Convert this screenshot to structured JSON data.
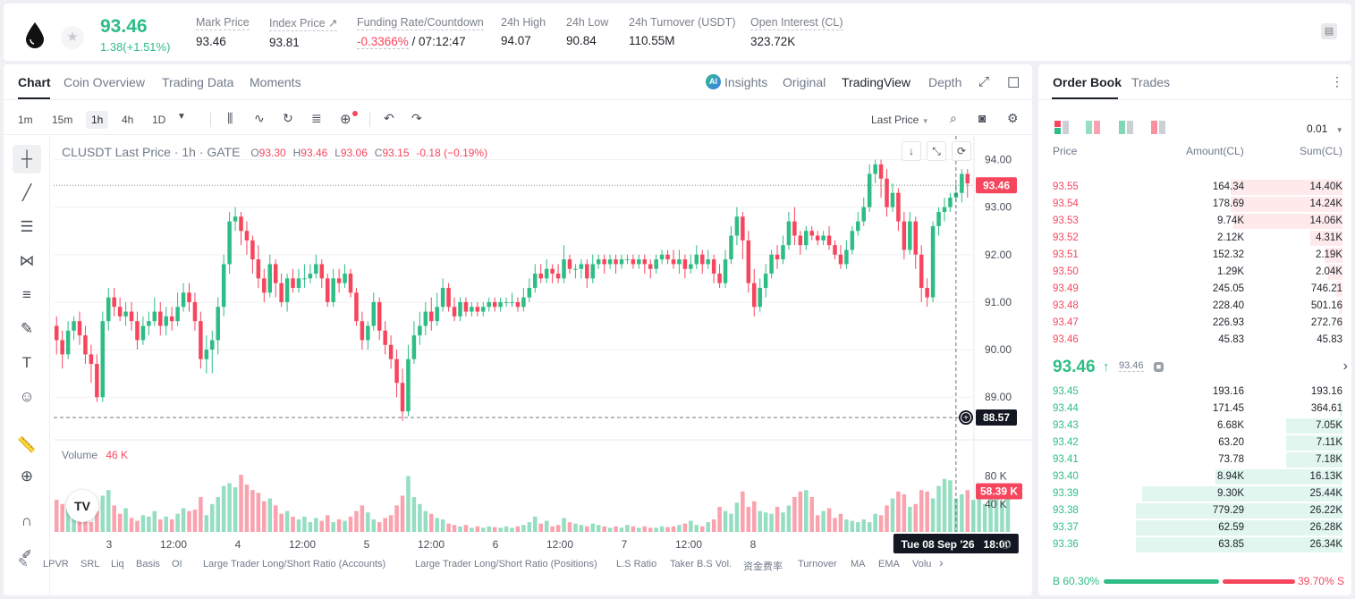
{
  "header": {
    "last_price": "93.46",
    "change": "1.38(+1.51%)",
    "stats": [
      {
        "label": "Mark Price",
        "value": "93.46"
      },
      {
        "label": "Index Price ↗",
        "value": "93.81"
      },
      {
        "label": "Funding Rate/Countdown",
        "value_rate": "-0.3366%",
        "value_countdown": " / 07:12:47"
      },
      {
        "label": "24h High",
        "value": "94.07"
      },
      {
        "label": "24h Low",
        "value": "90.84"
      },
      {
        "label": "24h Turnover (USDT)",
        "value": "110.55M"
      },
      {
        "label": "Open Interest (CL)",
        "value": "323.72K"
      }
    ]
  },
  "chart_tabs": [
    "Chart",
    "Coin Overview",
    "Trading Data",
    "Moments"
  ],
  "view_tabs": {
    "insights": "Insights",
    "original": "Original",
    "tradingview": "TradingView",
    "depth": "Depth",
    "ai_badge": "AI"
  },
  "intervals": [
    "1m",
    "15m",
    "1h",
    "4h",
    "1D"
  ],
  "last_price_selector": "Last Price",
  "legend": {
    "title": "CLUSDT Last Price · 1h · GATE",
    "open_label": "O",
    "open": "93.30",
    "high_label": "H",
    "high": "93.46",
    "low_label": "L",
    "low": "93.06",
    "close_label": "C",
    "close": "93.15",
    "change": "-0.18 (−0.19%)"
  },
  "volume_legend": {
    "label": "Volume",
    "value": "46 K"
  },
  "tv_logo": "TV",
  "indicators": [
    "LPVR",
    "SRL",
    "Liq",
    "Basis",
    "OI",
    "Large Trader Long/Short Ratio (Accounts)",
    "Large Trader Long/Short Ratio (Positions)",
    "L.S Ratio",
    "Taker B.S Vol.",
    "资金费率",
    "Turnover",
    "MA",
    "EMA",
    "Volu"
  ],
  "chart_data": {
    "type": "candlestick",
    "title": "CLUSDT Last Price · 1h · GATE",
    "y_ticks": [
      "94.00",
      "93.00",
      "92.00",
      "91.00",
      "90.00",
      "89.00"
    ],
    "ylim": [
      88.1,
      94.5
    ],
    "volume_ticks": [
      "80 K",
      "40 K"
    ],
    "volume_ylim": [
      0,
      100
    ],
    "x_ticks": [
      "3",
      "12:00",
      "4",
      "12:00",
      "5",
      "12:00",
      "6",
      "12:00",
      "7",
      "12:00",
      "8",
      "12:00"
    ],
    "last_price_label": "93.46",
    "last_price_value": 93.46,
    "crosshair_price_label": "88.57",
    "crosshair_price_value": 88.57,
    "crosshair_time_label": "Tue 08 Sep '26   18:00",
    "volume_current_label": "58.39 K",
    "volume_current_value": 58.39,
    "up_color": "#2ebd85",
    "down_color": "#f6465d",
    "candles": [
      [
        90.5,
        90.2,
        90.7,
        89.9
      ],
      [
        90.2,
        89.9,
        90.4,
        89.6
      ],
      [
        89.9,
        90.4,
        90.6,
        89.8
      ],
      [
        90.4,
        90.6,
        90.7,
        90.2
      ],
      [
        90.6,
        90.3,
        90.8,
        90.1
      ],
      [
        90.3,
        89.9,
        90.5,
        89.7
      ],
      [
        89.9,
        89.7,
        90.1,
        89.3
      ],
      [
        89.7,
        89.0,
        89.9,
        88.9
      ],
      [
        89.0,
        90.6,
        90.8,
        88.9
      ],
      [
        90.6,
        91.1,
        91.3,
        90.4
      ],
      [
        91.1,
        90.9,
        91.3,
        90.7
      ],
      [
        90.9,
        90.7,
        91.1,
        90.6
      ],
      [
        90.7,
        90.8,
        91.0,
        90.5
      ],
      [
        90.8,
        90.6,
        91.0,
        90.4
      ],
      [
        90.6,
        90.2,
        90.8,
        90.0
      ],
      [
        90.2,
        90.5,
        90.7,
        90.1
      ],
      [
        90.5,
        90.6,
        90.8,
        90.3
      ],
      [
        90.6,
        90.8,
        91.1,
        90.5
      ],
      [
        90.8,
        90.5,
        91.0,
        90.3
      ],
      [
        90.5,
        90.7,
        90.9,
        90.3
      ],
      [
        90.7,
        90.6,
        90.9,
        90.4
      ],
      [
        90.6,
        90.9,
        91.2,
        90.5
      ],
      [
        90.9,
        91.2,
        91.4,
        90.8
      ],
      [
        91.2,
        91.0,
        91.4,
        90.8
      ],
      [
        91.0,
        90.6,
        91.2,
        90.4
      ],
      [
        90.6,
        89.8,
        90.8,
        89.6
      ],
      [
        89.8,
        90.0,
        90.3,
        89.5
      ],
      [
        90.0,
        90.2,
        90.4,
        89.5
      ],
      [
        90.2,
        90.9,
        91.1,
        89.9
      ],
      [
        90.9,
        91.8,
        92.0,
        90.7
      ],
      [
        91.8,
        92.7,
        92.9,
        91.6
      ],
      [
        92.7,
        92.8,
        93.0,
        92.5
      ],
      [
        92.8,
        92.5,
        92.9,
        92.2
      ],
      [
        92.5,
        92.3,
        92.7,
        92.0
      ],
      [
        92.3,
        91.9,
        92.4,
        91.6
      ],
      [
        91.9,
        91.5,
        92.2,
        91.3
      ],
      [
        91.5,
        91.2,
        91.7,
        91.0
      ],
      [
        91.2,
        91.8,
        92.0,
        91.1
      ],
      [
        91.8,
        91.4,
        91.9,
        91.1
      ],
      [
        91.4,
        91.0,
        91.6,
        90.9
      ],
      [
        91.0,
        91.5,
        91.6,
        90.8
      ],
      [
        91.5,
        91.3,
        91.7,
        91.2
      ],
      [
        91.3,
        91.5,
        91.7,
        91.2
      ],
      [
        91.5,
        91.5,
        91.8,
        91.3
      ],
      [
        91.5,
        91.6,
        91.8,
        91.4
      ],
      [
        91.6,
        91.8,
        92.0,
        91.5
      ],
      [
        91.8,
        91.5,
        91.9,
        91.3
      ],
      [
        91.5,
        91.0,
        91.6,
        90.9
      ],
      [
        91.0,
        91.5,
        91.7,
        90.9
      ],
      [
        91.5,
        91.4,
        91.7,
        91.2
      ],
      [
        91.4,
        91.6,
        91.8,
        91.3
      ],
      [
        91.6,
        91.2,
        91.7,
        91.1
      ],
      [
        91.2,
        90.6,
        91.3,
        90.5
      ],
      [
        90.6,
        90.2,
        90.8,
        90.0
      ],
      [
        90.2,
        90.5,
        90.6,
        90.0
      ],
      [
        90.5,
        91.0,
        91.2,
        90.4
      ],
      [
        91.0,
        90.4,
        91.1,
        90.2
      ],
      [
        90.4,
        90.1,
        90.6,
        89.9
      ],
      [
        90.1,
        89.8,
        90.3,
        89.6
      ],
      [
        89.8,
        89.3,
        90.0,
        89.0
      ],
      [
        89.3,
        88.7,
        89.6,
        88.5
      ],
      [
        88.7,
        89.8,
        90.1,
        88.6
      ],
      [
        89.8,
        90.3,
        90.6,
        89.7
      ],
      [
        90.3,
        90.5,
        90.8,
        90.1
      ],
      [
        90.5,
        90.8,
        91.0,
        90.3
      ],
      [
        90.8,
        90.6,
        91.1,
        90.4
      ],
      [
        90.6,
        90.9,
        91.2,
        90.5
      ],
      [
        90.9,
        91.3,
        91.5,
        90.8
      ],
      [
        91.3,
        90.9,
        91.4,
        90.8
      ],
      [
        90.9,
        90.7,
        91.1,
        90.6
      ],
      [
        90.7,
        91.0,
        91.1,
        90.6
      ],
      [
        91.0,
        90.8,
        91.1,
        90.7
      ],
      [
        90.8,
        90.9,
        91.0,
        90.7
      ],
      [
        90.9,
        90.8,
        91.0,
        90.7
      ],
      [
        90.8,
        90.9,
        91.0,
        90.7
      ],
      [
        90.9,
        91.0,
        91.1,
        90.8
      ],
      [
        91.0,
        90.9,
        91.1,
        90.8
      ],
      [
        90.9,
        91.0,
        91.1,
        90.8
      ],
      [
        91.0,
        91.0,
        91.1,
        90.9
      ],
      [
        91.0,
        91.0,
        91.2,
        90.9
      ],
      [
        91.0,
        90.9,
        91.1,
        90.8
      ],
      [
        90.9,
        91.1,
        91.3,
        90.8
      ],
      [
        91.1,
        91.3,
        91.5,
        91.0
      ],
      [
        91.3,
        91.6,
        91.8,
        91.2
      ],
      [
        91.6,
        91.5,
        91.8,
        91.4
      ],
      [
        91.5,
        91.7,
        91.9,
        91.4
      ],
      [
        91.7,
        91.6,
        91.8,
        91.4
      ],
      [
        91.6,
        91.5,
        91.8,
        91.4
      ],
      [
        91.5,
        91.9,
        92.2,
        91.4
      ],
      [
        91.9,
        91.7,
        92.0,
        91.6
      ],
      [
        91.7,
        91.7,
        91.8,
        91.5
      ],
      [
        91.7,
        91.8,
        91.9,
        91.5
      ],
      [
        91.8,
        91.5,
        91.9,
        91.3
      ],
      [
        91.5,
        91.8,
        92.0,
        91.4
      ],
      [
        91.8,
        91.9,
        92.0,
        91.7
      ],
      [
        91.9,
        91.8,
        92.0,
        91.6
      ],
      [
        91.8,
        91.9,
        92.0,
        91.7
      ],
      [
        91.9,
        91.8,
        92.0,
        91.6
      ],
      [
        91.8,
        91.9,
        92.0,
        91.7
      ],
      [
        91.9,
        91.9,
        92.0,
        91.8
      ],
      [
        91.9,
        91.8,
        92.0,
        91.7
      ],
      [
        91.8,
        91.9,
        92.0,
        91.7
      ],
      [
        91.9,
        91.8,
        92.0,
        91.6
      ],
      [
        91.8,
        91.7,
        91.9,
        91.5
      ],
      [
        91.7,
        91.9,
        92.0,
        91.6
      ],
      [
        91.9,
        92.0,
        92.1,
        91.8
      ],
      [
        92.0,
        91.9,
        92.1,
        91.8
      ],
      [
        91.9,
        91.8,
        92.1,
        91.7
      ],
      [
        91.8,
        91.9,
        92.1,
        91.6
      ],
      [
        91.9,
        91.7,
        92.0,
        91.5
      ],
      [
        91.7,
        91.8,
        92.0,
        91.6
      ],
      [
        91.8,
        92.0,
        92.2,
        91.7
      ],
      [
        92.0,
        91.8,
        92.1,
        91.6
      ],
      [
        91.8,
        91.9,
        92.1,
        91.7
      ],
      [
        91.9,
        91.6,
        92.0,
        91.4
      ],
      [
        91.6,
        91.4,
        91.8,
        91.3
      ],
      [
        91.4,
        91.9,
        92.1,
        91.3
      ],
      [
        91.9,
        92.4,
        92.6,
        91.8
      ],
      [
        92.4,
        92.8,
        93.0,
        92.2
      ],
      [
        92.8,
        92.3,
        92.9,
        91.9
      ],
      [
        92.3,
        91.4,
        92.5,
        91.2
      ],
      [
        91.4,
        90.9,
        91.7,
        90.7
      ],
      [
        90.9,
        91.3,
        91.5,
        90.8
      ],
      [
        91.3,
        91.6,
        91.8,
        91.1
      ],
      [
        91.6,
        92.0,
        92.1,
        91.5
      ],
      [
        92.0,
        91.9,
        92.2,
        91.7
      ],
      [
        91.9,
        92.2,
        92.4,
        91.8
      ],
      [
        92.2,
        92.7,
        92.9,
        92.1
      ],
      [
        92.7,
        92.4,
        93.0,
        92.2
      ],
      [
        92.4,
        92.2,
        92.5,
        92.0
      ],
      [
        92.2,
        92.5,
        92.6,
        92.1
      ],
      [
        92.5,
        92.4,
        92.6,
        92.3
      ],
      [
        92.4,
        92.3,
        92.5,
        92.2
      ],
      [
        92.3,
        92.4,
        92.5,
        92.2
      ],
      [
        92.4,
        92.2,
        92.6,
        92.1
      ],
      [
        92.2,
        92.0,
        92.3,
        91.9
      ],
      [
        92.0,
        91.8,
        92.2,
        91.7
      ],
      [
        91.8,
        92.1,
        92.3,
        91.7
      ],
      [
        92.1,
        92.5,
        92.6,
        92.0
      ],
      [
        92.5,
        92.7,
        92.9,
        92.4
      ],
      [
        92.7,
        93.0,
        93.2,
        92.6
      ],
      [
        93.0,
        93.7,
        93.9,
        92.9
      ],
      [
        93.7,
        93.9,
        94.0,
        93.5
      ],
      [
        93.9,
        93.6,
        94.0,
        93.2
      ],
      [
        93.6,
        93.0,
        93.8,
        92.8
      ],
      [
        93.0,
        93.3,
        93.5,
        92.9
      ],
      [
        93.3,
        92.7,
        93.4,
        92.5
      ],
      [
        92.7,
        92.1,
        92.9,
        91.9
      ],
      [
        92.1,
        92.7,
        92.9,
        92.0
      ],
      [
        92.7,
        92.0,
        92.8,
        91.7
      ],
      [
        92.0,
        91.3,
        92.2,
        91.0
      ],
      [
        91.3,
        91.1,
        91.5,
        90.9
      ],
      [
        91.1,
        92.6,
        92.7,
        91.0
      ],
      [
        92.6,
        92.9,
        93.0,
        92.4
      ],
      [
        92.9,
        93.0,
        93.2,
        92.7
      ],
      [
        93.0,
        93.2,
        93.3,
        92.9
      ],
      [
        93.2,
        93.3,
        93.5,
        93.1
      ],
      [
        93.3,
        93.7,
        93.8,
        93.1
      ],
      [
        93.7,
        93.5,
        93.8,
        93.2
      ]
    ],
    "volumes": [
      46,
      40,
      34,
      20,
      28,
      22,
      14,
      30,
      52,
      60,
      38,
      26,
      34,
      20,
      16,
      24,
      22,
      30,
      18,
      22,
      18,
      26,
      34,
      30,
      32,
      50,
      24,
      40,
      50,
      66,
      70,
      64,
      82,
      68,
      60,
      56,
      44,
      48,
      38,
      26,
      30,
      22,
      18,
      22,
      14,
      20,
      16,
      24,
      14,
      18,
      16,
      22,
      30,
      38,
      28,
      18,
      14,
      20,
      24,
      38,
      52,
      80,
      50,
      40,
      30,
      26,
      20,
      18,
      12,
      10,
      8,
      10,
      6,
      8,
      6,
      8,
      7,
      6,
      8,
      6,
      8,
      10,
      14,
      22,
      12,
      16,
      8,
      10,
      20,
      14,
      12,
      10,
      8,
      12,
      10,
      8,
      6,
      8,
      6,
      10,
      8,
      6,
      8,
      6,
      6,
      8,
      7,
      8,
      10,
      12,
      16,
      10,
      8,
      14,
      18,
      36,
      30,
      26,
      42,
      58,
      36,
      44,
      30,
      28,
      26,
      36,
      28,
      38,
      50,
      58,
      60,
      50,
      24,
      30,
      34,
      20,
      26,
      18,
      16,
      14,
      18,
      14,
      26,
      24,
      38,
      48,
      58,
      54,
      36,
      40,
      60,
      58,
      48,
      66,
      76,
      74,
      48,
      54,
      60,
      46,
      50,
      40,
      48,
      52,
      44,
      56
    ]
  },
  "orderbook": {
    "tabs": [
      "Order Book",
      "Trades"
    ],
    "precision": "0.01",
    "columns": {
      "price": "Price",
      "amount": "Amount(CL)",
      "sum": "Sum(CL)"
    },
    "asks": [
      {
        "price": "93.55",
        "amount": "164.34",
        "sum": "14.40K",
        "depth": 0.38
      },
      {
        "price": "93.54",
        "amount": "178.69",
        "sum": "14.24K",
        "depth": 0.38
      },
      {
        "price": "93.53",
        "amount": "9.74K",
        "sum": "14.06K",
        "depth": 0.37
      },
      {
        "price": "93.52",
        "amount": "2.12K",
        "sum": "4.31K",
        "depth": 0.11
      },
      {
        "price": "93.51",
        "amount": "152.32",
        "sum": "2.19K",
        "depth": 0.06
      },
      {
        "price": "93.50",
        "amount": "1.29K",
        "sum": "2.04K",
        "depth": 0.05
      },
      {
        "price": "93.49",
        "amount": "245.05",
        "sum": "746.21",
        "depth": 0.02
      },
      {
        "price": "93.48",
        "amount": "228.40",
        "sum": "501.16",
        "depth": 0.013
      },
      {
        "price": "93.47",
        "amount": "226.93",
        "sum": "272.76",
        "depth": 0.007
      },
      {
        "price": "93.46",
        "amount": "45.83",
        "sum": "45.83",
        "depth": 0.0
      }
    ],
    "mid": {
      "price": "93.46",
      "arrow": "↑",
      "mark": "93.46",
      "chevron": "›"
    },
    "bids": [
      {
        "price": "93.45",
        "amount": "193.16",
        "sum": "193.16",
        "depth": 0.0
      },
      {
        "price": "93.44",
        "amount": "171.45",
        "sum": "364.61",
        "depth": 0.01
      },
      {
        "price": "93.43",
        "amount": "6.68K",
        "sum": "7.05K",
        "depth": 0.19
      },
      {
        "price": "93.42",
        "amount": "63.20",
        "sum": "7.11K",
        "depth": 0.19
      },
      {
        "price": "93.41",
        "amount": "73.78",
        "sum": "7.18K",
        "depth": 0.19
      },
      {
        "price": "93.40",
        "amount": "8.94K",
        "sum": "16.13K",
        "depth": 0.43
      },
      {
        "price": "93.39",
        "amount": "9.30K",
        "sum": "25.44K",
        "depth": 0.68
      },
      {
        "price": "93.38",
        "amount": "779.29",
        "sum": "26.22K",
        "depth": 0.7
      },
      {
        "price": "93.37",
        "amount": "62.59",
        "sum": "26.28K",
        "depth": 0.7
      },
      {
        "price": "93.36",
        "amount": "63.85",
        "sum": "26.34K",
        "depth": 0.7
      }
    ],
    "ratio": {
      "buy": "B 60.30%",
      "sell": "39.70% S",
      "buy_fraction": 0.603
    }
  }
}
